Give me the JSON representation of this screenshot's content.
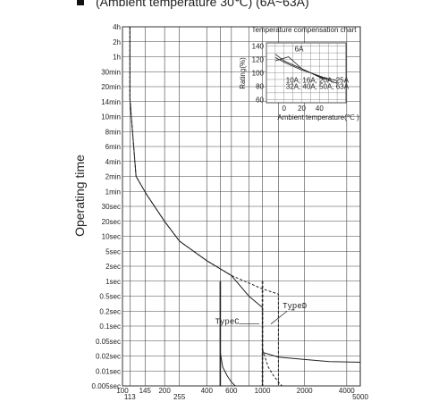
{
  "heading": "(Ambient temperature 30℃) (6A~63A)",
  "chart_data": {
    "type": "line",
    "title": "",
    "ylabel": "Operating time",
    "xlabel": "",
    "x_scale": "log",
    "xlim": [
      100,
      5000
    ],
    "x_ticks": [
      100,
      113,
      145,
      200,
      255,
      400,
      600,
      1000,
      2000,
      4000,
      5000
    ],
    "x_tick_labels": [
      "100",
      "113",
      "145",
      "200",
      "255",
      "400",
      "600",
      "1000",
      "2000",
      "4000",
      "5000"
    ],
    "y_scale": "log",
    "y_unit": "seconds",
    "y_ticks": [
      {
        "label": "0.005sec",
        "sec": 0.005
      },
      {
        "label": "0.01sec",
        "sec": 0.01
      },
      {
        "label": "0.02sec",
        "sec": 0.02
      },
      {
        "label": "0.05sec",
        "sec": 0.05
      },
      {
        "label": "0.1sec",
        "sec": 0.1
      },
      {
        "label": "0.2sec",
        "sec": 0.2
      },
      {
        "label": "0.5sec",
        "sec": 0.5
      },
      {
        "label": "1sec",
        "sec": 1
      },
      {
        "label": "2sec",
        "sec": 2
      },
      {
        "label": "5sec",
        "sec": 5
      },
      {
        "label": "10sec",
        "sec": 10
      },
      {
        "label": "20sec",
        "sec": 20
      },
      {
        "label": "30sec",
        "sec": 30
      },
      {
        "label": "1min",
        "sec": 60
      },
      {
        "label": "2min",
        "sec": 120
      },
      {
        "label": "4min",
        "sec": 240
      },
      {
        "label": "6min",
        "sec": 360
      },
      {
        "label": "8min",
        "sec": 480
      },
      {
        "label": "10min",
        "sec": 600
      },
      {
        "label": "14min",
        "sec": 840
      },
      {
        "label": "20min",
        "sec": 1200
      },
      {
        "label": "30min",
        "sec": 1800
      },
      {
        "label": "1h",
        "sec": 3600
      },
      {
        "label": "2h",
        "sec": 7200
      },
      {
        "label": "4h",
        "sec": 14400
      }
    ],
    "grid": true,
    "series": [
      {
        "name": "TypeC",
        "style": "solid",
        "points": [
          [
            113,
            14400
          ],
          [
            113,
            900
          ],
          [
            125,
            120
          ],
          [
            150,
            50
          ],
          [
            200,
            20
          ],
          [
            255,
            8
          ],
          [
            400,
            2.8
          ],
          [
            600,
            1.3
          ],
          [
            800,
            0.5
          ],
          [
            1000,
            0.25
          ],
          [
            1000,
            0.005
          ]
        ]
      },
      {
        "name": "TypeC",
        "style": "solid",
        "points": [
          [
            500,
            1
          ],
          [
            500,
            0.005
          ]
        ]
      },
      {
        "name": "TypeC",
        "style": "solid",
        "points": [
          [
            500,
            0.025
          ],
          [
            520,
            0.012
          ],
          [
            560,
            0.008
          ],
          [
            600,
            0.006
          ],
          [
            640,
            0.005
          ]
        ]
      },
      {
        "name": "TypeC",
        "style": "solid",
        "points": [
          [
            1000,
            0.025
          ],
          [
            1300,
            0.019
          ],
          [
            2000,
            0.017
          ],
          [
            3000,
            0.0155
          ],
          [
            5000,
            0.015
          ]
        ]
      },
      {
        "name": "TypeD",
        "style": "dashed",
        "points": [
          [
            113,
            14400
          ],
          [
            113,
            900
          ],
          [
            125,
            120
          ],
          [
            150,
            50
          ],
          [
            200,
            20
          ],
          [
            255,
            8
          ],
          [
            400,
            2.8
          ],
          [
            600,
            1.3
          ],
          [
            1000,
            0.7
          ],
          [
            1300,
            0.55
          ],
          [
            1300,
            0.005
          ]
        ]
      },
      {
        "name": "TypeD",
        "style": "dashed",
        "points": [
          [
            1000,
            1
          ],
          [
            1000,
            0.005
          ]
        ]
      },
      {
        "name": "TypeD",
        "style": "dashed",
        "points": [
          [
            1000,
            0.03
          ],
          [
            1100,
            0.012
          ],
          [
            1200,
            0.008
          ],
          [
            1300,
            0.006
          ],
          [
            1380,
            0.005
          ]
        ]
      }
    ],
    "annotations": [
      {
        "text": "TypeC",
        "x": 560,
        "y": 0.11
      },
      {
        "text": "TypeD",
        "x": 1700,
        "y": 0.24
      }
    ],
    "inset": {
      "title": "Temperature compensation chart",
      "xlabel": "Ambient temperature(℃ )",
      "ylabel": "Rating(%)",
      "xlim": [
        -20,
        70
      ],
      "ylim": [
        55,
        145
      ],
      "x_ticks": [
        0,
        20,
        40
      ],
      "y_ticks": [
        60,
        80,
        100,
        120,
        140
      ],
      "series": [
        {
          "name": "6A",
          "points": [
            [
              -10,
              118
            ],
            [
              5,
              124
            ],
            [
              20,
              106
            ],
            [
              30,
              100
            ],
            [
              45,
              90
            ]
          ]
        },
        {
          "name": "10A, 16A, 20A, 25A",
          "points": [
            [
              -10,
              123
            ],
            [
              0,
              116
            ],
            [
              20,
              104
            ],
            [
              30,
              100
            ],
            [
              45,
              92
            ],
            [
              60,
              84
            ]
          ]
        },
        {
          "name": "32A, 40A, 50A, 63A",
          "points": [
            [
              -10,
              128
            ],
            [
              0,
              118
            ],
            [
              20,
              106
            ],
            [
              30,
              100
            ],
            [
              45,
              93
            ],
            [
              60,
              88
            ]
          ]
        }
      ],
      "labels": [
        "6A",
        "10A, 16A, 20A, 25A",
        "32A, 40A, 50A, 63A"
      ]
    }
  }
}
